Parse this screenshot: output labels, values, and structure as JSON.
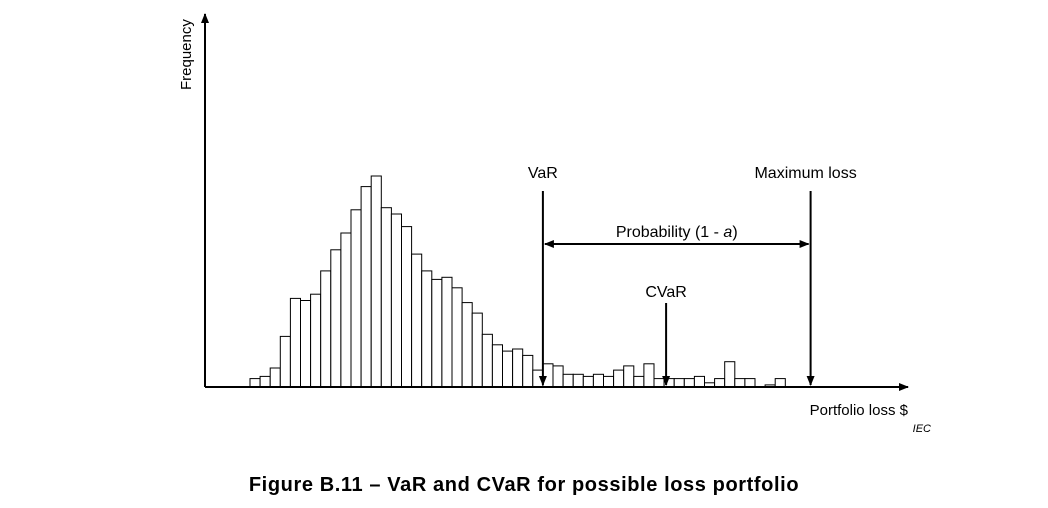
{
  "chart_data": {
    "type": "bar",
    "title": "",
    "ylabel": "Frequency",
    "xlabel": "Portfolio loss $",
    "source_tag": "IEC",
    "grid": false,
    "legend": "none",
    "ylim": [
      0,
      100
    ],
    "categories": [
      "1",
      "2",
      "3",
      "4",
      "5",
      "6",
      "7",
      "8",
      "9",
      "10",
      "11",
      "12",
      "13",
      "14",
      "15",
      "16",
      "17",
      "18",
      "19",
      "20",
      "21",
      "22",
      "23",
      "24",
      "25",
      "26",
      "27",
      "28",
      "29",
      "30",
      "31",
      "32",
      "33",
      "34",
      "35",
      "36",
      "37",
      "38",
      "39",
      "40",
      "41",
      "42",
      "43",
      "44",
      "45",
      "46",
      "47",
      "48",
      "49",
      "50",
      "51",
      "52",
      "53"
    ],
    "values": [
      4,
      5,
      9,
      24,
      42,
      41,
      44,
      55,
      65,
      73,
      84,
      95,
      100,
      85,
      82,
      76,
      63,
      55,
      51,
      52,
      47,
      40,
      35,
      25,
      20,
      17,
      18,
      15,
      8,
      11,
      10,
      6,
      6,
      5,
      6,
      5,
      8,
      10,
      5,
      11,
      4,
      4,
      4,
      4,
      5,
      2,
      4,
      12,
      4,
      4,
      0,
      1,
      4
    ],
    "annotations": [
      {
        "label": "VaR",
        "bin": 29
      },
      {
        "label": "CVaR",
        "bin": 41
      },
      {
        "label": "Maximum loss",
        "bin": 56
      }
    ],
    "interval_label_prefix": "Probability (1 - ",
    "interval_label_symbol": "a",
    "interval_label_suffix": ")"
  },
  "caption": "Figure B.11 – VaR and CVaR for possible loss portfolio"
}
